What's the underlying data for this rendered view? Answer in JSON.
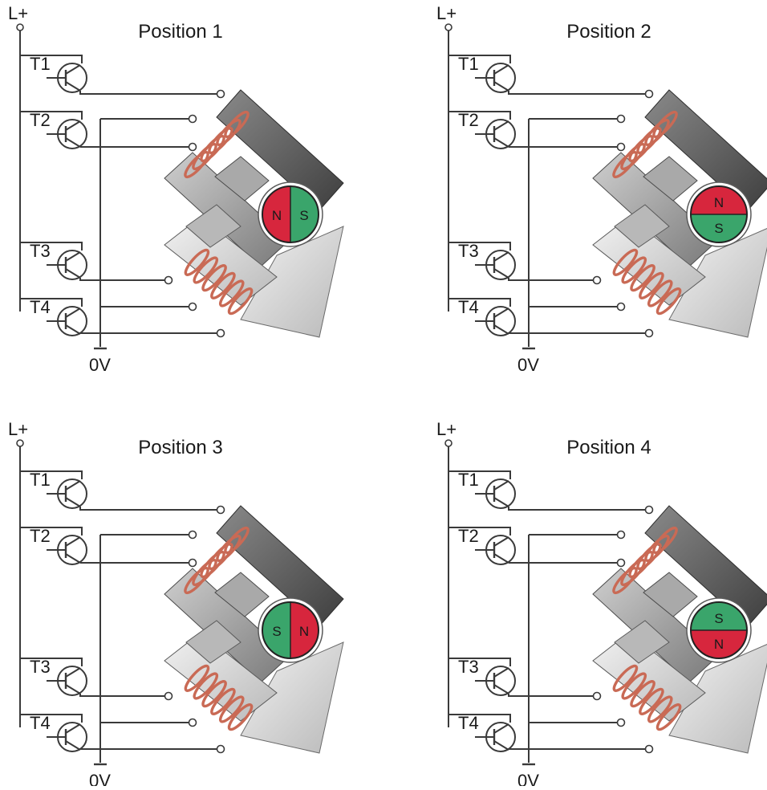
{
  "diagram": {
    "supply_label": "L+",
    "ground_label": "0V",
    "transistor_labels": [
      "T1",
      "T2",
      "T3",
      "T4"
    ],
    "colors": {
      "north": "#d7263d",
      "south": "#3aa56b",
      "coil": "#c96a55",
      "wire": "#3a3a3a",
      "core_dark": "#5f5f5f",
      "core_mid": "#9c9c9c",
      "core_light": "#d8d8d8"
    },
    "panels": [
      {
        "title": "Position 1",
        "rotor": {
          "left": "N",
          "right": "S",
          "split": "vertical"
        }
      },
      {
        "title": "Position 2",
        "rotor": {
          "top": "N",
          "bottom": "S",
          "split": "horizontal"
        }
      },
      {
        "title": "Position 3",
        "rotor": {
          "left": "S",
          "right": "N",
          "split": "vertical"
        }
      },
      {
        "title": "Position 4",
        "rotor": {
          "top": "S",
          "bottom": "N",
          "split": "horizontal"
        }
      }
    ]
  }
}
